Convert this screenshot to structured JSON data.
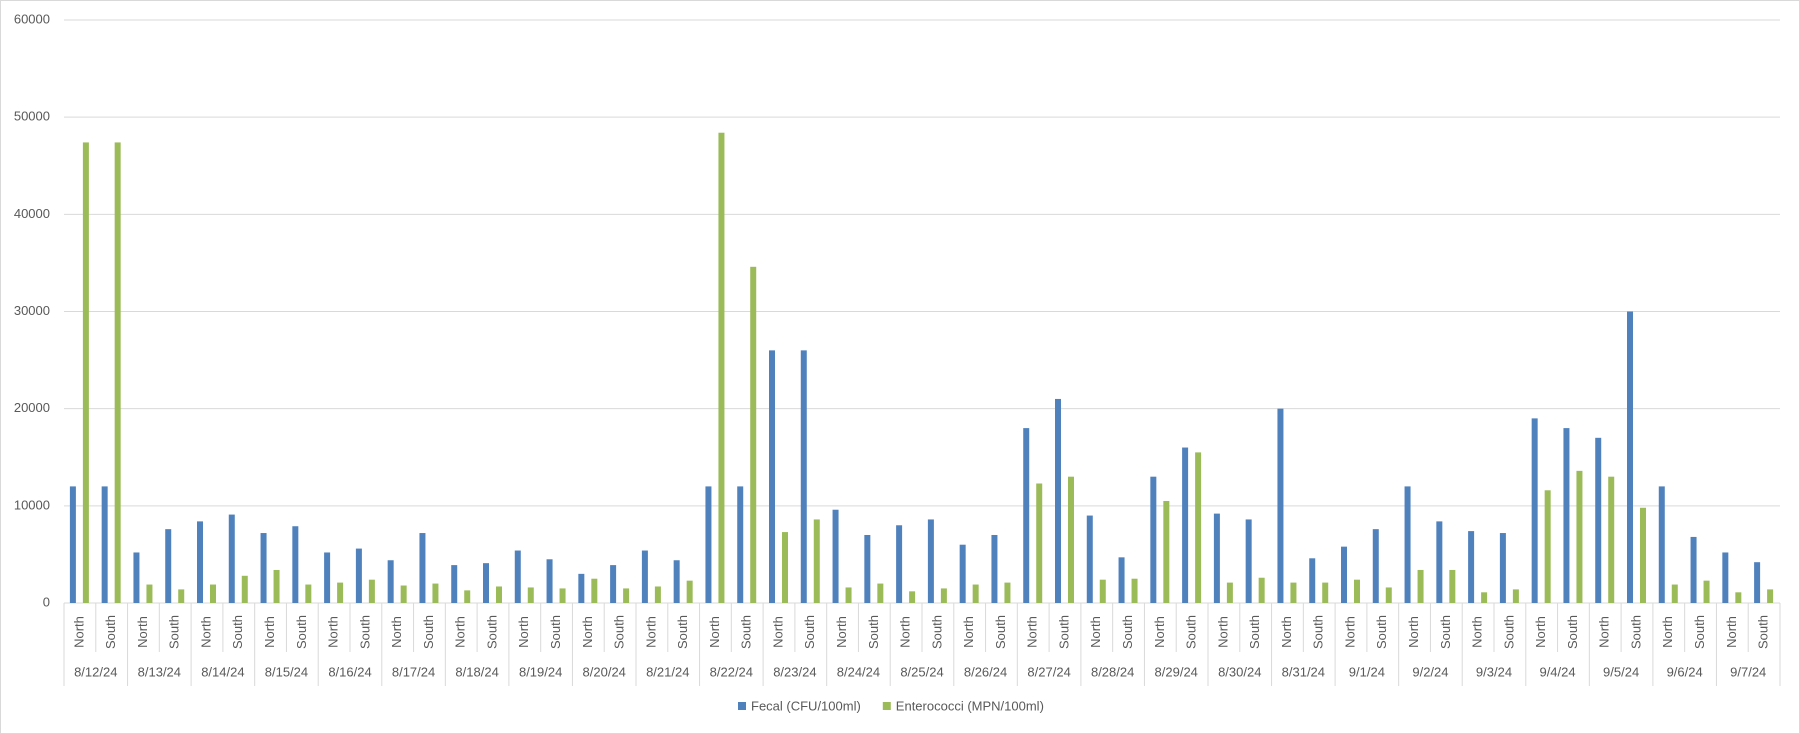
{
  "chart_data": {
    "type": "bar",
    "groups": [
      "8/12/24",
      "8/13/24",
      "8/14/24",
      "8/15/24",
      "8/16/24",
      "8/17/24",
      "8/18/24",
      "8/19/24",
      "8/20/24",
      "8/21/24",
      "8/22/24",
      "8/23/24",
      "8/24/24",
      "8/25/24",
      "8/26/24",
      "8/27/24",
      "8/28/24",
      "8/29/24",
      "8/30/24",
      "8/31/24",
      "9/1/24",
      "9/2/24",
      "9/3/24",
      "9/4/24",
      "9/5/24",
      "9/6/24",
      "9/7/24"
    ],
    "categories": [
      "North",
      "South",
      "North",
      "South",
      "North",
      "South",
      "North",
      "South",
      "North",
      "South",
      "North",
      "South",
      "North",
      "South",
      "North",
      "South",
      "North",
      "South",
      "North",
      "South",
      "North",
      "South",
      "North",
      "South",
      "North",
      "South",
      "North",
      "South",
      "North",
      "South",
      "North",
      "South",
      "North",
      "South",
      "North",
      "South",
      "North",
      "South",
      "North",
      "South",
      "North",
      "South",
      "North",
      "South",
      "North",
      "South",
      "North",
      "South",
      "North",
      "South",
      "North",
      "South",
      "North",
      "South"
    ],
    "series": [
      {
        "name": "Fecal (CFU/100ml)",
        "color": "#4f81bd",
        "values": [
          12000,
          12000,
          5200,
          7600,
          8400,
          9100,
          7200,
          7900,
          5200,
          5600,
          4400,
          7200,
          3900,
          4100,
          5400,
          4500,
          3000,
          3900,
          5400,
          4400,
          12000,
          12000,
          26000,
          26000,
          9600,
          7000,
          8000,
          8600,
          6000,
          7000,
          18000,
          21000,
          9000,
          4700,
          13000,
          16000,
          9200,
          8600,
          20000,
          4600,
          5800,
          7600,
          12000,
          8400,
          7400,
          7200,
          19000,
          18000,
          17000,
          30000,
          12000,
          6800,
          5200,
          4200
        ]
      },
      {
        "name": "Enterococci (MPN/100ml)",
        "color": "#9bbb59",
        "values": [
          47400,
          47400,
          1900,
          1400,
          1900,
          2800,
          3400,
          1900,
          2100,
          2400,
          1800,
          2000,
          1300,
          1700,
          1600,
          1500,
          2500,
          1500,
          1700,
          2300,
          48400,
          34600,
          7300,
          8600,
          1600,
          2000,
          1200,
          1500,
          1900,
          2100,
          12300,
          13000,
          2400,
          2500,
          10500,
          15500,
          2100,
          2600,
          2100,
          2100,
          2400,
          1600,
          3400,
          3400,
          1100,
          1400,
          11600,
          13600,
          13000,
          9800,
          1900,
          2300,
          1100,
          1400
        ]
      }
    ],
    "ylim": [
      0,
      60000
    ],
    "yticks": [
      0,
      10000,
      20000,
      30000,
      40000,
      50000,
      60000
    ],
    "grid": true,
    "legend": "bottom"
  }
}
